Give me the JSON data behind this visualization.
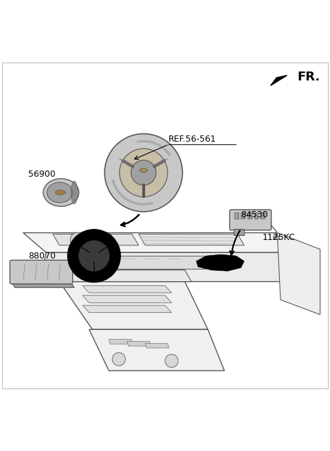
{
  "bg_color": "#ffffff",
  "fr_label": "FR.",
  "label_fontsize": 9,
  "fr_fontsize": 13,
  "line_color": "#555555",
  "fill_light": "#c8c8c8",
  "fill_med": "#a0a0a0",
  "fill_dark": "#707070",
  "black": "#000000"
}
